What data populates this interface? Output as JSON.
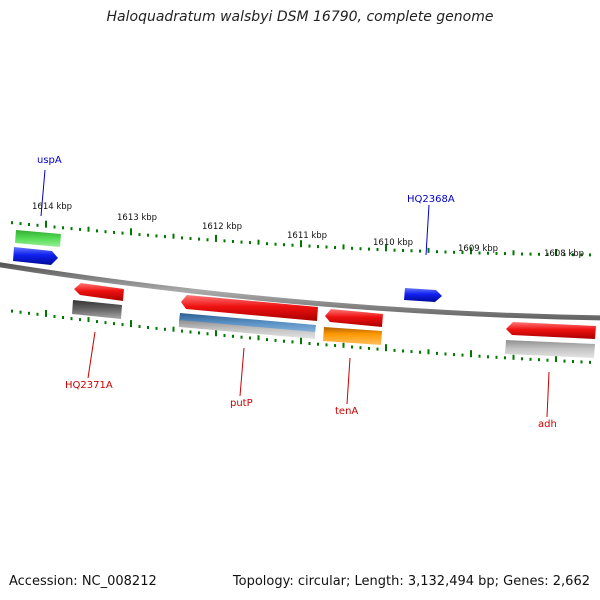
{
  "title": "Haloquadratum walsbyi DSM 16790, complete genome",
  "footer": {
    "accession": "Accession: NC_008212",
    "summary": "Topology: circular; Length: 3,132,494 bp; Genes: 2,662"
  },
  "ticks": [
    "1614 kbp",
    "1613 kbp",
    "1612 kbp",
    "1611 kbp",
    "1610 kbp",
    "1609 kbp",
    "1608 kbp"
  ],
  "genes": {
    "uspA": "uspA",
    "HQ2368A": "HQ2368A",
    "HQ2371A": "HQ2371A",
    "putP": "putP",
    "tenA": "tenA",
    "adh": "adh"
  },
  "colors": {
    "forward_label": "#0000cc",
    "reverse_label": "#cc0000",
    "cds_red": "#ee1111",
    "cds_blue": "#1020ee",
    "cds_green": "#33bb33",
    "cds_orange": "#ff9900",
    "cds_steel": "#4a7fb0",
    "cds_gray": "#aaaaaa",
    "cds_dark": "#555555",
    "tick_green": "#007700",
    "backbone": "#777777"
  }
}
